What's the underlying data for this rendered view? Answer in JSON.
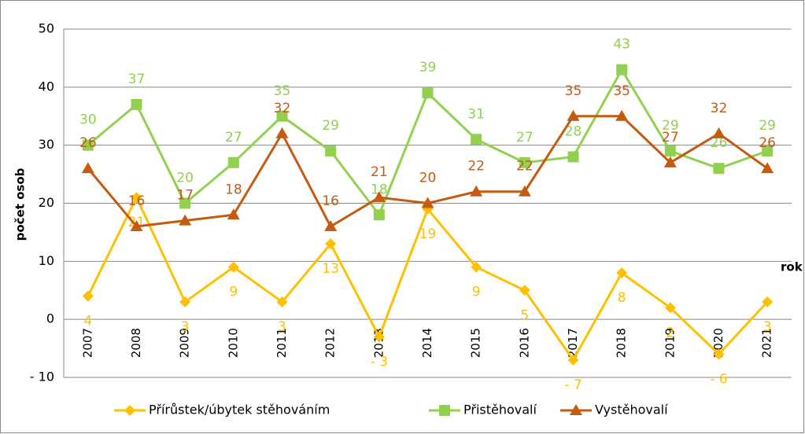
{
  "chart_data": {
    "type": "line",
    "categories": [
      "2007",
      "2008",
      "2009",
      "2010",
      "2011",
      "2012",
      "2013",
      "2014",
      "2015",
      "2016",
      "2017",
      "2018",
      "2019",
      "2020",
      "2021"
    ],
    "ylabel": "počet osob",
    "xlabel": "rok",
    "ylim": [
      -10,
      50
    ],
    "yticks": [
      {
        "value": -10,
        "label": "- 10"
      },
      0,
      10,
      20,
      30,
      40,
      50
    ],
    "grid": true,
    "legend": "bottom",
    "series": [
      {
        "name": "Přírůstek/úbytek stěhováním",
        "color": "#ffc000",
        "marker": "diamond",
        "label_position": "below",
        "values": [
          4,
          21,
          3,
          9,
          3,
          13,
          -3,
          19,
          9,
          5,
          -7,
          8,
          2,
          -6,
          3
        ],
        "value_labels": [
          "4",
          "21",
          "3",
          "9",
          "3",
          "13",
          "- 3",
          "19",
          "9",
          "5",
          "- 7",
          "8",
          "2",
          "- 6",
          "3"
        ]
      },
      {
        "name": "Přistěhovalí",
        "color": "#92d050",
        "marker": "square",
        "label_position": "above",
        "values": [
          30,
          37,
          20,
          27,
          35,
          29,
          18,
          39,
          31,
          27,
          28,
          43,
          29,
          26,
          29
        ]
      },
      {
        "name": "Vystěhovalí",
        "color": "#c55a11",
        "marker": "triangle",
        "label_position": "above",
        "values": [
          26,
          16,
          17,
          18,
          32,
          16,
          21,
          20,
          22,
          22,
          35,
          35,
          27,
          32,
          26
        ]
      }
    ]
  }
}
